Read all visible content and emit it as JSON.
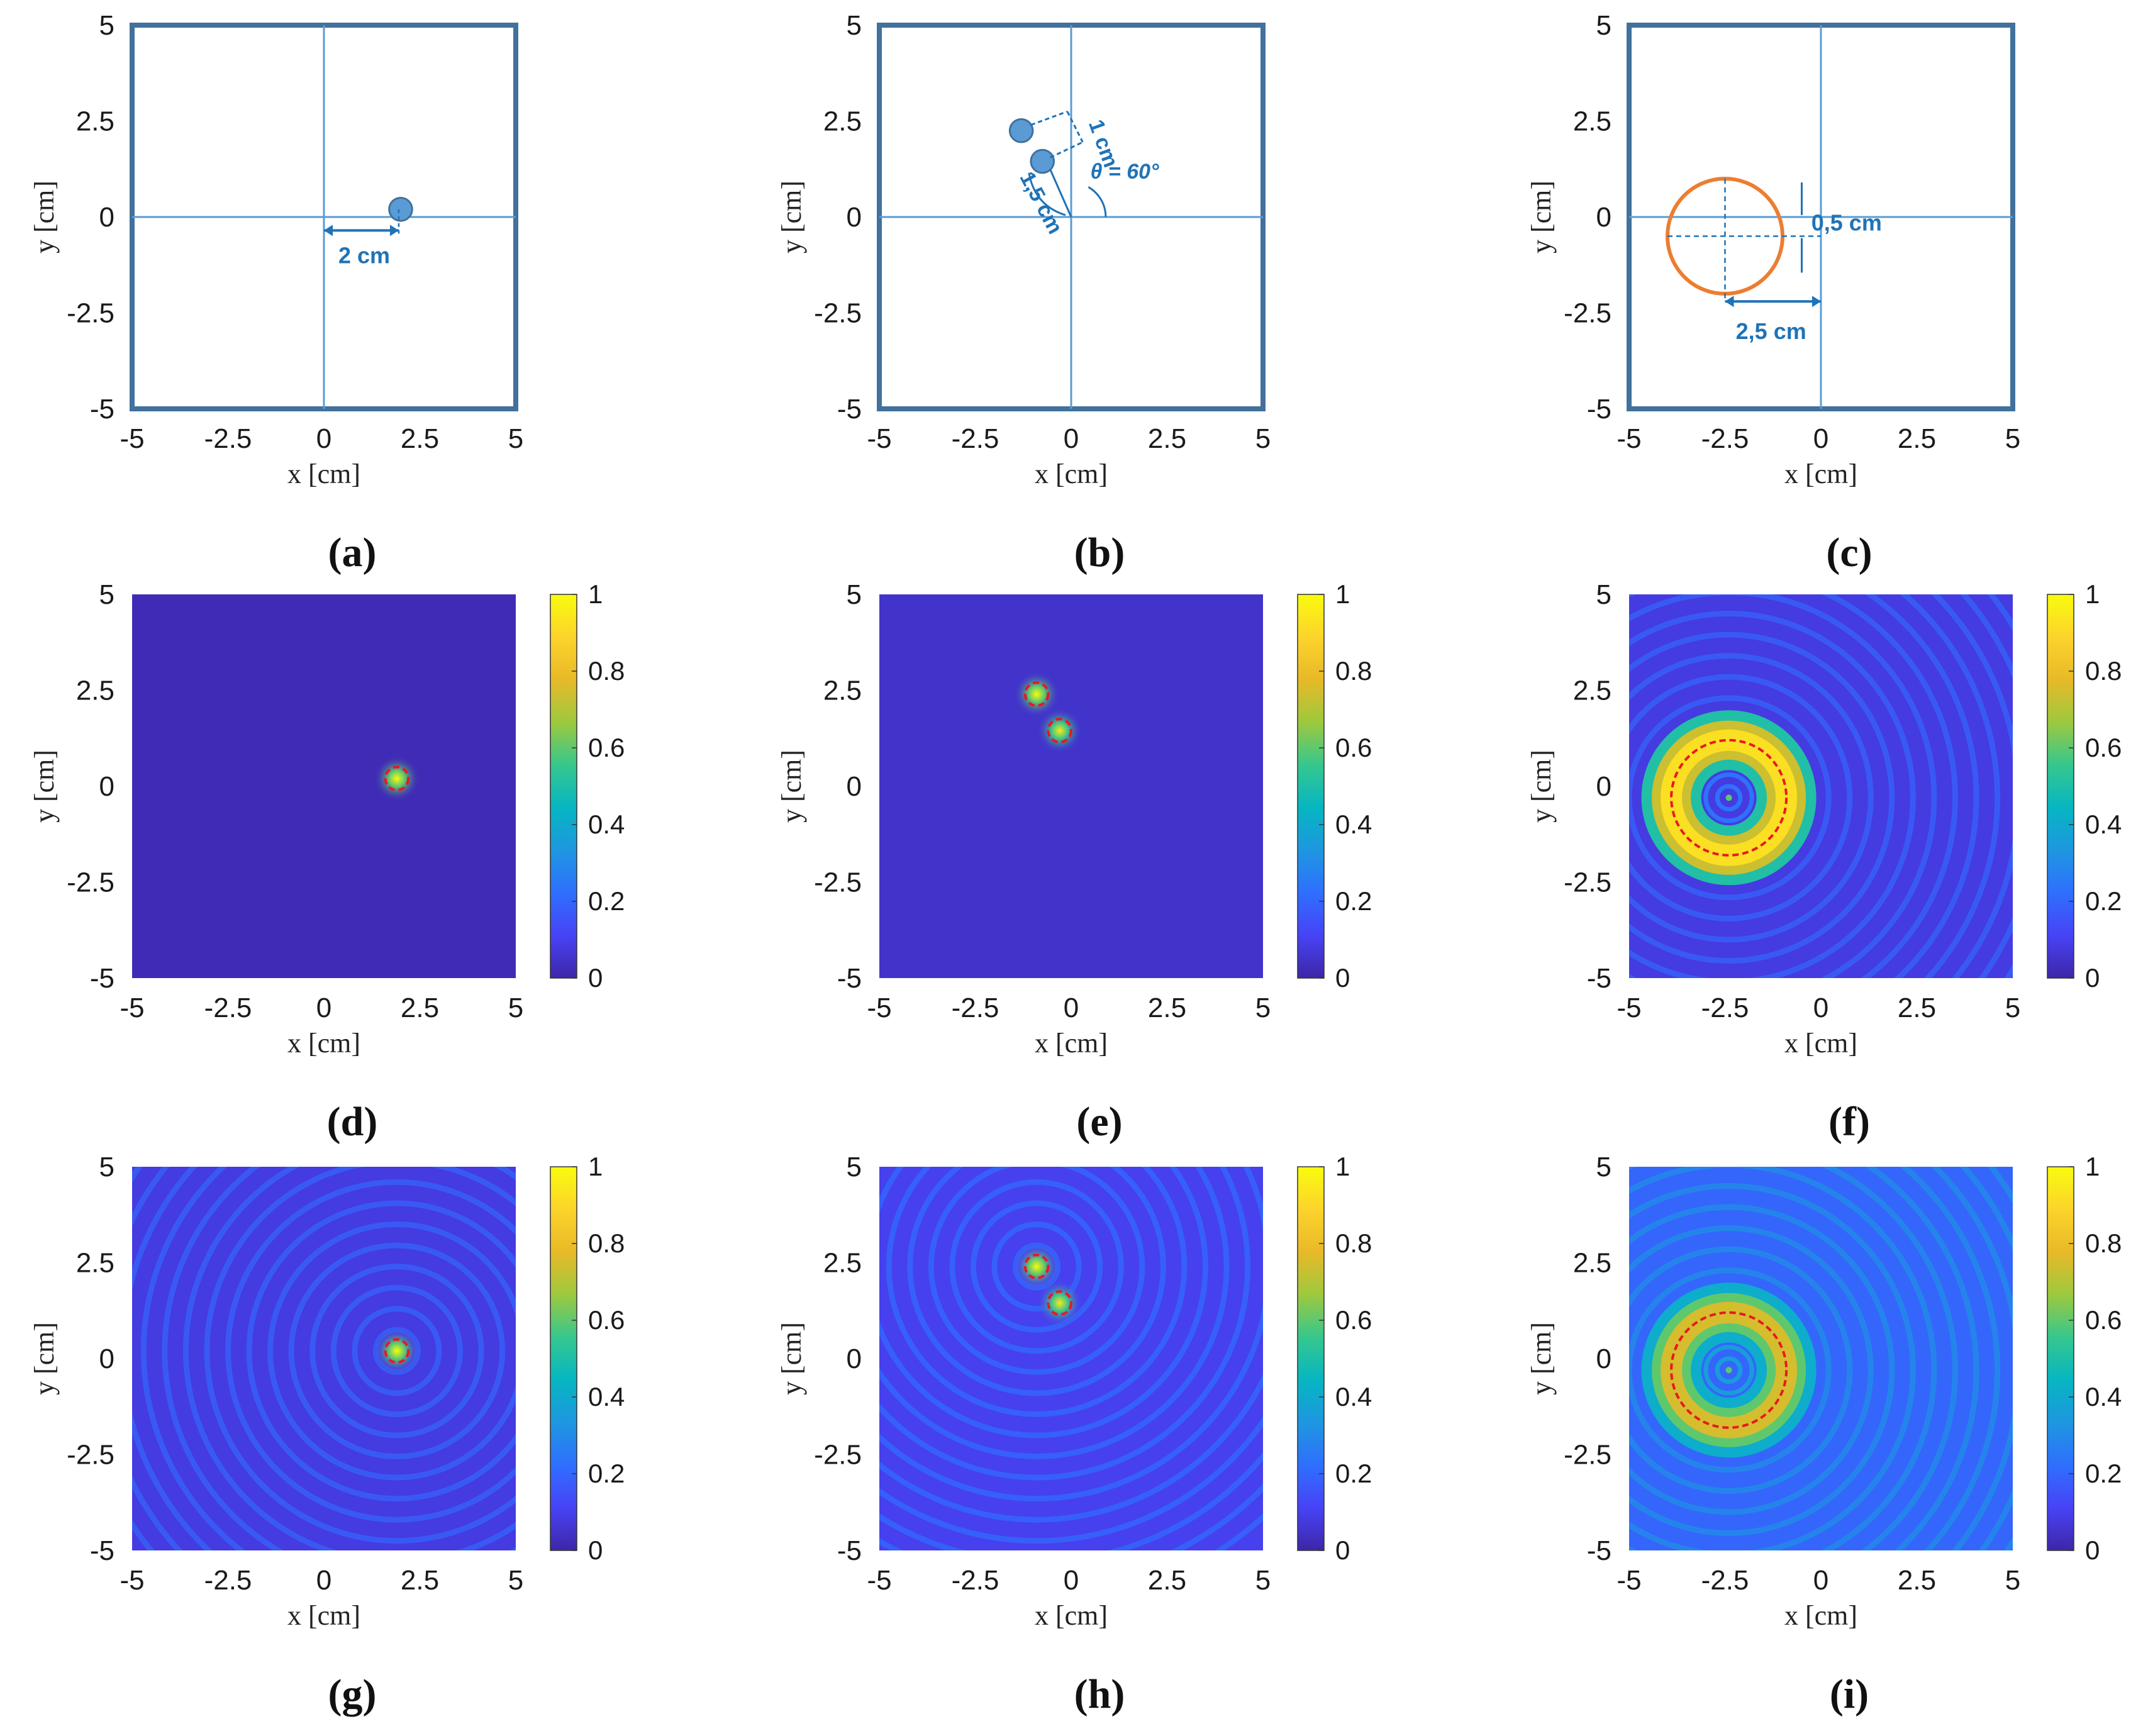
{
  "figure": {
    "colorbar_ticks": [
      "0",
      "0.2",
      "0.4",
      "0.6",
      "0.8",
      "1"
    ],
    "colormap": [
      "#3e26a8",
      "#4743f6",
      "#2f6ffe",
      "#1e97e0",
      "#06b6c2",
      "#36c78d",
      "#9dc93e",
      "#e8b928",
      "#fcd42b",
      "#f9fb0e"
    ]
  },
  "chart_data": [
    {
      "id": "a",
      "panel": "(a)",
      "type": "diagram",
      "xlabel": "x [cm]",
      "ylabel": "y [cm]",
      "xlim": [
        -5,
        5
      ],
      "ylim": [
        -5,
        5
      ],
      "xticks": [
        "-5",
        "-2.5",
        "0",
        "2.5",
        "5"
      ],
      "yticks": [
        "-5",
        "-2.5",
        "0",
        "2.5",
        "5"
      ],
      "targets": [
        {
          "x": 2,
          "y": 0.2,
          "r": 0.3
        }
      ],
      "annotations": [
        "2 cm"
      ]
    },
    {
      "id": "b",
      "panel": "(b)",
      "type": "diagram",
      "xlabel": "x [cm]",
      "ylabel": "y [cm]",
      "xlim": [
        -5,
        5
      ],
      "ylim": [
        -5,
        5
      ],
      "xticks": [
        "-5",
        "-2.5",
        "0",
        "2.5",
        "5"
      ],
      "yticks": [
        "-5",
        "-2.5",
        "0",
        "2.5",
        "5"
      ],
      "targets": [
        {
          "x": -0.75,
          "y": 1.45,
          "r": 0.3
        },
        {
          "x": -1.3,
          "y": 2.25,
          "r": 0.3
        }
      ],
      "annotations": [
        "1 cm",
        "1,5 cm",
        "θ = 60°"
      ]
    },
    {
      "id": "c",
      "panel": "(c)",
      "type": "diagram",
      "xlabel": "x [cm]",
      "ylabel": "y [cm]",
      "xlim": [
        -5,
        5
      ],
      "ylim": [
        -5,
        5
      ],
      "xticks": [
        "-5",
        "-2.5",
        "0",
        "2.5",
        "5"
      ],
      "yticks": [
        "-5",
        "-2.5",
        "0",
        "2.5",
        "5"
      ],
      "ring": {
        "cx": -2.5,
        "cy": -0.5,
        "r": 1.5
      },
      "annotations": [
        "0,5 cm",
        "2,5 cm"
      ]
    },
    {
      "id": "d",
      "panel": "(d)",
      "type": "heatmap",
      "xlabel": "x [cm]",
      "ylabel": "y [cm]",
      "xlim": [
        -5,
        5
      ],
      "ylim": [
        -5,
        5
      ],
      "xticks": [
        "-5",
        "-2.5",
        "0",
        "2.5",
        "5"
      ],
      "yticks": [
        "-5",
        "-2.5",
        "0",
        "2.5",
        "5"
      ],
      "clim": [
        0,
        1
      ],
      "background": 0.02,
      "peaks": [
        {
          "x": 1.9,
          "y": 0.2,
          "value": 1.0
        }
      ],
      "outlines": [
        {
          "x": 1.9,
          "y": 0.2,
          "r": 0.3
        }
      ]
    },
    {
      "id": "e",
      "panel": "(e)",
      "type": "heatmap",
      "xlabel": "x [cm]",
      "ylabel": "y [cm]",
      "xlim": [
        -5,
        5
      ],
      "ylim": [
        -5,
        5
      ],
      "xticks": [
        "-5",
        "-2.5",
        "0",
        "2.5",
        "5"
      ],
      "yticks": [
        "-5",
        "-2.5",
        "0",
        "2.5",
        "5"
      ],
      "clim": [
        0,
        1
      ],
      "background": 0.05,
      "peaks": [
        {
          "x": -0.9,
          "y": 2.4,
          "value": 1.0
        },
        {
          "x": -0.3,
          "y": 1.45,
          "value": 0.95
        }
      ],
      "outlines": [
        {
          "x": -0.9,
          "y": 2.4,
          "r": 0.3
        },
        {
          "x": -0.3,
          "y": 1.45,
          "r": 0.3
        }
      ]
    },
    {
      "id": "f",
      "panel": "(f)",
      "type": "heatmap",
      "xlabel": "x [cm]",
      "ylabel": "y [cm]",
      "xlim": [
        -5,
        5
      ],
      "ylim": [
        -5,
        5
      ],
      "xticks": [
        "-5",
        "-2.5",
        "0",
        "2.5",
        "5"
      ],
      "yticks": [
        "-5",
        "-2.5",
        "0",
        "2.5",
        "5"
      ],
      "clim": [
        0,
        1
      ],
      "background": 0.08,
      "ring": {
        "cx": -2.4,
        "cy": -0.3,
        "r": 1.5,
        "value": 0.92
      },
      "outlines": [
        {
          "x": -2.4,
          "y": -0.3,
          "r": 1.5
        }
      ]
    },
    {
      "id": "g",
      "panel": "(g)",
      "type": "heatmap",
      "xlabel": "x [cm]",
      "ylabel": "y [cm]",
      "xlim": [
        -5,
        5
      ],
      "ylim": [
        -5,
        5
      ],
      "xticks": [
        "-5",
        "-2.5",
        "0",
        "2.5",
        "5"
      ],
      "yticks": [
        "-5",
        "-2.5",
        "0",
        "2.5",
        "5"
      ],
      "clim": [
        0,
        1
      ],
      "background": 0.08,
      "peaks": [
        {
          "x": 1.9,
          "y": 0.2,
          "value": 1.0
        }
      ],
      "outlines": [
        {
          "x": 1.9,
          "y": 0.2,
          "r": 0.3
        }
      ]
    },
    {
      "id": "h",
      "panel": "(h)",
      "type": "heatmap",
      "xlabel": "x [cm]",
      "ylabel": "y [cm]",
      "xlim": [
        -5,
        5
      ],
      "ylim": [
        -5,
        5
      ],
      "xticks": [
        "-5",
        "-2.5",
        "0",
        "2.5",
        "5"
      ],
      "yticks": [
        "-5",
        "-2.5",
        "0",
        "2.5",
        "5"
      ],
      "clim": [
        0,
        1
      ],
      "background": 0.1,
      "peaks": [
        {
          "x": -0.9,
          "y": 2.4,
          "value": 1.0
        },
        {
          "x": -0.3,
          "y": 1.45,
          "value": 0.95
        }
      ],
      "outlines": [
        {
          "x": -0.9,
          "y": 2.4,
          "r": 0.3
        },
        {
          "x": -0.3,
          "y": 1.45,
          "r": 0.3
        }
      ]
    },
    {
      "id": "i",
      "panel": "(i)",
      "type": "heatmap",
      "xlabel": "x [cm]",
      "ylabel": "y [cm]",
      "xlim": [
        -5,
        5
      ],
      "ylim": [
        -5,
        5
      ],
      "xticks": [
        "-5",
        "-2.5",
        "0",
        "2.5",
        "5"
      ],
      "yticks": [
        "-5",
        "-2.5",
        "0",
        "2.5",
        "5"
      ],
      "clim": [
        0,
        1
      ],
      "background": 0.2,
      "ring": {
        "cx": -2.4,
        "cy": -0.3,
        "r": 1.5,
        "value": 0.75
      },
      "outlines": [
        {
          "x": -2.4,
          "y": -0.3,
          "r": 1.5
        }
      ]
    }
  ]
}
